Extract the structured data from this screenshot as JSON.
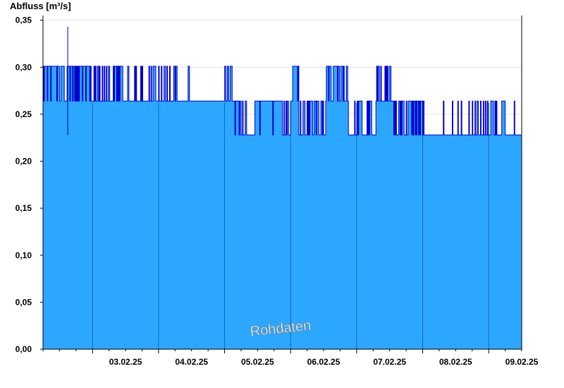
{
  "chart_data": {
    "type": "area",
    "ylabel": "Abfluss [m³/s]",
    "watermark": "Rohdaten",
    "ylim": [
      0,
      0.355
    ],
    "xlim": [
      "2025-02-02T06:00",
      "2025-02-09T12:00"
    ],
    "yticks": [
      "0,00",
      "0,05",
      "0,10",
      "0,15",
      "0,20",
      "0,25",
      "0,30",
      "0,35"
    ],
    "xticks": [
      "03.02.25",
      "04.02.25",
      "05.02.25",
      "06.02.25",
      "07.02.25",
      "08.02.25",
      "09.02.25"
    ],
    "grid": true,
    "legend": "none",
    "colors": {
      "fill": "#2ca7ff",
      "line": "#0000cc",
      "grid": "#e4e4e4",
      "day_line": "#1466b8"
    },
    "series": [
      {
        "quantization_levels": [
          0.228,
          0.264,
          0.301
        ],
        "spike": {
          "t": "2025-02-02T15:00",
          "max": 0.343,
          "min": 0.228
        },
        "segments": [
          {
            "from": "2025-02-02T06:00",
            "to": "2025-02-02T09:00",
            "base": 0.301,
            "alt": 0.264,
            "toggle_rate": 0.35
          },
          {
            "from": "2025-02-02T09:00",
            "to": "2025-02-02T12:00",
            "base": 0.301,
            "alt": 0.264,
            "toggle_rate": 0.15
          },
          {
            "from": "2025-02-02T12:00",
            "to": "2025-02-02T17:30",
            "base": 0.301,
            "alt": 0.264,
            "toggle_rate": 0.4
          },
          {
            "from": "2025-02-02T17:30",
            "to": "2025-02-03T12:00",
            "base": 0.264,
            "alt": 0.301,
            "toggle_rate": 0.5
          },
          {
            "from": "2025-02-03T12:00",
            "to": "2025-02-04T12:00",
            "base": 0.264,
            "alt": 0.301,
            "toggle_rate": 0.3
          },
          {
            "from": "2025-02-04T12:00",
            "to": "2025-02-05T00:00",
            "base": 0.264,
            "alt": 0.264,
            "toggle_rate": 0.0
          },
          {
            "from": "2025-02-05T00:00",
            "to": "2025-02-05T03:00",
            "base": 0.264,
            "alt": 0.301,
            "toggle_rate": 0.4
          },
          {
            "from": "2025-02-05T03:00",
            "to": "2025-02-05T06:00",
            "base": 0.264,
            "alt": 0.228,
            "toggle_rate": 0.3
          },
          {
            "from": "2025-02-05T06:00",
            "to": "2025-02-05T12:00",
            "base": 0.228,
            "alt": 0.264,
            "toggle_rate": 0.35
          },
          {
            "from": "2025-02-05T12:00",
            "to": "2025-02-05T21:00",
            "base": 0.264,
            "alt": 0.228,
            "toggle_rate": 0.05
          },
          {
            "from": "2025-02-05T21:00",
            "to": "2025-02-06T00:00",
            "base": 0.264,
            "alt": 0.228,
            "toggle_rate": 0.5
          },
          {
            "from": "2025-02-06T00:00",
            "to": "2025-02-06T03:00",
            "base": 0.264,
            "alt": 0.301,
            "toggle_rate": 0.5
          },
          {
            "from": "2025-02-06T03:00",
            "to": "2025-02-06T09:00",
            "base": 0.228,
            "alt": 0.264,
            "toggle_rate": 0.4
          },
          {
            "from": "2025-02-06T09:00",
            "to": "2025-02-06T13:00",
            "base": 0.264,
            "alt": 0.228,
            "toggle_rate": 0.45
          },
          {
            "from": "2025-02-06T13:00",
            "to": "2025-02-06T21:00",
            "base": 0.264,
            "alt": 0.301,
            "toggle_rate": 0.6
          },
          {
            "from": "2025-02-06T21:00",
            "to": "2025-02-07T00:00",
            "base": 0.228,
            "alt": 0.264,
            "toggle_rate": 0.05
          },
          {
            "from": "2025-02-07T00:00",
            "to": "2025-02-07T07:00",
            "base": 0.228,
            "alt": 0.264,
            "toggle_rate": 0.45
          },
          {
            "from": "2025-02-07T07:00",
            "to": "2025-02-07T13:00",
            "base": 0.264,
            "alt": 0.301,
            "toggle_rate": 0.25
          },
          {
            "from": "2025-02-07T13:00",
            "to": "2025-02-07T23:00",
            "base": 0.264,
            "alt": 0.228,
            "toggle_rate": 0.45
          },
          {
            "from": "2025-02-07T23:00",
            "to": "2025-02-08T00:00",
            "base": 0.264,
            "alt": 0.228,
            "toggle_rate": 0.3
          },
          {
            "from": "2025-02-08T00:00",
            "to": "2025-02-08T12:00",
            "base": 0.228,
            "alt": 0.264,
            "toggle_rate": 0.05
          },
          {
            "from": "2025-02-08T12:00",
            "to": "2025-02-08T23:00",
            "base": 0.228,
            "alt": 0.264,
            "toggle_rate": 0.3
          },
          {
            "from": "2025-02-08T23:00",
            "to": "2025-02-09T06:00",
            "base": 0.228,
            "alt": 0.264,
            "toggle_rate": 0.4
          },
          {
            "from": "2025-02-09T06:00",
            "to": "2025-02-09T12:00",
            "base": 0.228,
            "alt": 0.264,
            "toggle_rate": 0.15
          }
        ]
      }
    ]
  }
}
